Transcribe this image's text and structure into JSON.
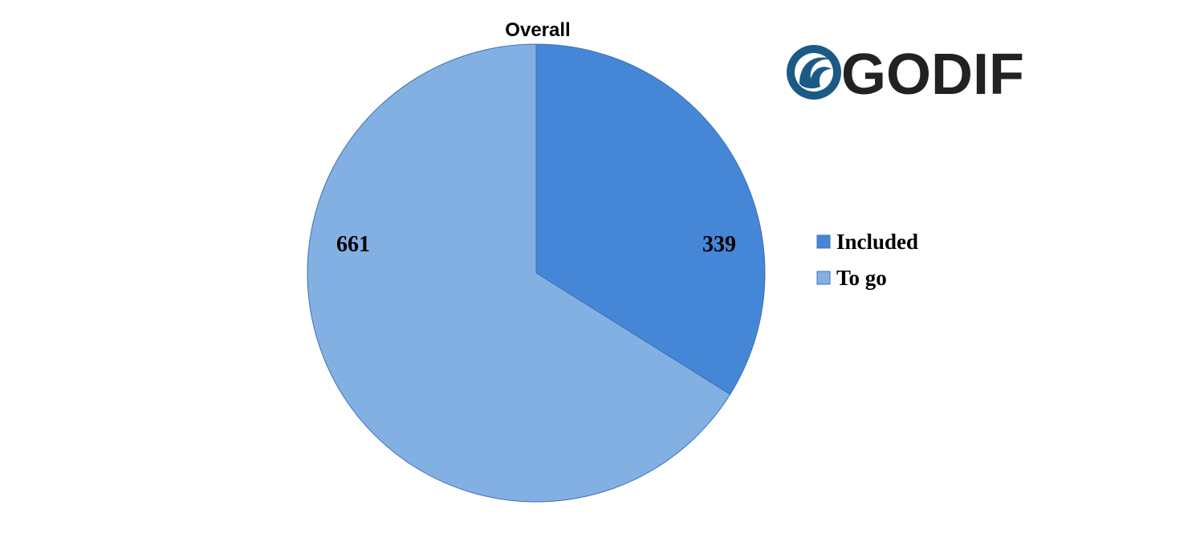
{
  "chart_data": {
    "type": "pie",
    "title": "Overall",
    "categories": [
      "Included",
      "To go"
    ],
    "values": [
      339,
      661
    ],
    "colors": [
      "#4686d6",
      "#83b0e3"
    ],
    "start_angle": 0,
    "direction": "clockwise",
    "legend": "right"
  },
  "logo_text": "GODIF"
}
